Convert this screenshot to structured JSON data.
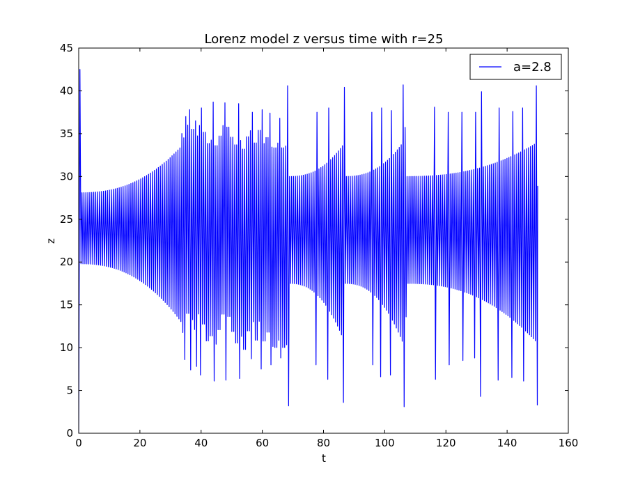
{
  "chart_data": {
    "type": "line",
    "title": "Lorenz model z versus time with r=25",
    "xlabel": "t",
    "ylabel": "z",
    "xlim": [
      0,
      160
    ],
    "ylim": [
      0,
      45
    ],
    "xticks": [
      0,
      20,
      40,
      60,
      80,
      100,
      120,
      140,
      160
    ],
    "yticks": [
      0,
      5,
      10,
      15,
      20,
      25,
      30,
      35,
      40,
      45
    ],
    "xtick_labels": [
      "0",
      "20",
      "40",
      "60",
      "80",
      "100",
      "120",
      "140",
      "160"
    ],
    "ytick_labels": [
      "0",
      "5",
      "10",
      "15",
      "20",
      "25",
      "30",
      "35",
      "40",
      "45"
    ],
    "grid": false,
    "legend_position": "top-right",
    "series": [
      {
        "name": "a=2.8",
        "color": "#0000ff",
        "t_start": 0,
        "t_end": 150,
        "oscillation_period": 0.64,
        "initial_spike": {
          "t": 0.4,
          "z": 42.5
        },
        "phases": [
          {
            "t_start": 0.0,
            "t_end": 33.5,
            "min_start": 19.8,
            "max_start": 28.1,
            "min_end": 13.0,
            "max_end": 33.5
          },
          {
            "t_start": 68.8,
            "t_end": 87.0,
            "min_start": 17.5,
            "max_start": 30.0,
            "min_end": 10.5,
            "max_end": 34.0
          },
          {
            "t_start": 87.0,
            "t_end": 106.0,
            "min_start": 17.5,
            "max_start": 30.0,
            "min_end": 10.5,
            "max_end": 34.0
          },
          {
            "t_start": 107.0,
            "t_end": 150.0,
            "min_start": 17.5,
            "max_start": 30.0,
            "min_end": 10.5,
            "max_end": 34.0
          }
        ],
        "peaks": [
          {
            "t": 34.8,
            "z": 37.0
          },
          {
            "t": 36.3,
            "z": 37.8
          },
          {
            "t": 38.3,
            "z": 36.5
          },
          {
            "t": 40.0,
            "z": 38.0
          },
          {
            "t": 44.2,
            "z": 38.7
          },
          {
            "t": 48.0,
            "z": 38.6
          },
          {
            "t": 52.3,
            "z": 38.5
          },
          {
            "t": 56.7,
            "z": 37.5
          },
          {
            "t": 59.7,
            "z": 37.8
          },
          {
            "t": 62.7,
            "z": 37.4
          },
          {
            "t": 66.0,
            "z": 36.8
          },
          {
            "t": 68.3,
            "z": 40.6
          },
          {
            "t": 77.8,
            "z": 37.5
          },
          {
            "t": 81.7,
            "z": 38.0
          },
          {
            "t": 86.8,
            "z": 40.4
          },
          {
            "t": 95.8,
            "z": 37.5
          },
          {
            "t": 98.7,
            "z": 38.0
          },
          {
            "t": 102.0,
            "z": 37.7
          },
          {
            "t": 106.3,
            "z": 40.7
          },
          {
            "t": 116.3,
            "z": 38.1
          },
          {
            "t": 120.8,
            "z": 37.5
          },
          {
            "t": 125.3,
            "z": 37.5
          },
          {
            "t": 129.7,
            "z": 37.5
          },
          {
            "t": 131.5,
            "z": 39.9
          },
          {
            "t": 137.3,
            "z": 38.0
          },
          {
            "t": 141.7,
            "z": 37.6
          },
          {
            "t": 145.3,
            "z": 38.0
          },
          {
            "t": 149.8,
            "z": 40.6
          }
        ],
        "troughs": [
          {
            "t": 34.8,
            "z": 8.6
          },
          {
            "t": 36.3,
            "z": 7.4
          },
          {
            "t": 38.3,
            "z": 7.8
          },
          {
            "t": 40.0,
            "z": 6.8
          },
          {
            "t": 44.2,
            "z": 6.1
          },
          {
            "t": 48.0,
            "z": 6.2
          },
          {
            "t": 52.3,
            "z": 6.4
          },
          {
            "t": 56.7,
            "z": 8.7
          },
          {
            "t": 59.7,
            "z": 7.5
          },
          {
            "t": 62.7,
            "z": 8.0
          },
          {
            "t": 66.0,
            "z": 8.8
          },
          {
            "t": 68.3,
            "z": 3.2
          },
          {
            "t": 77.8,
            "z": 8.0
          },
          {
            "t": 81.7,
            "z": 6.3
          },
          {
            "t": 86.8,
            "z": 3.6
          },
          {
            "t": 95.8,
            "z": 8.0
          },
          {
            "t": 98.7,
            "z": 6.6
          },
          {
            "t": 102.0,
            "z": 6.8
          },
          {
            "t": 106.3,
            "z": 3.1
          },
          {
            "t": 116.3,
            "z": 6.3
          },
          {
            "t": 120.8,
            "z": 8.0
          },
          {
            "t": 125.3,
            "z": 8.5
          },
          {
            "t": 129.7,
            "z": 8.8
          },
          {
            "t": 131.5,
            "z": 4.3
          },
          {
            "t": 137.3,
            "z": 6.2
          },
          {
            "t": 141.7,
            "z": 6.5
          },
          {
            "t": 145.3,
            "z": 6.1
          },
          {
            "t": 149.8,
            "z": 3.3
          }
        ],
        "final_value": {
          "t": 150.0,
          "z": 28.9
        }
      }
    ]
  }
}
